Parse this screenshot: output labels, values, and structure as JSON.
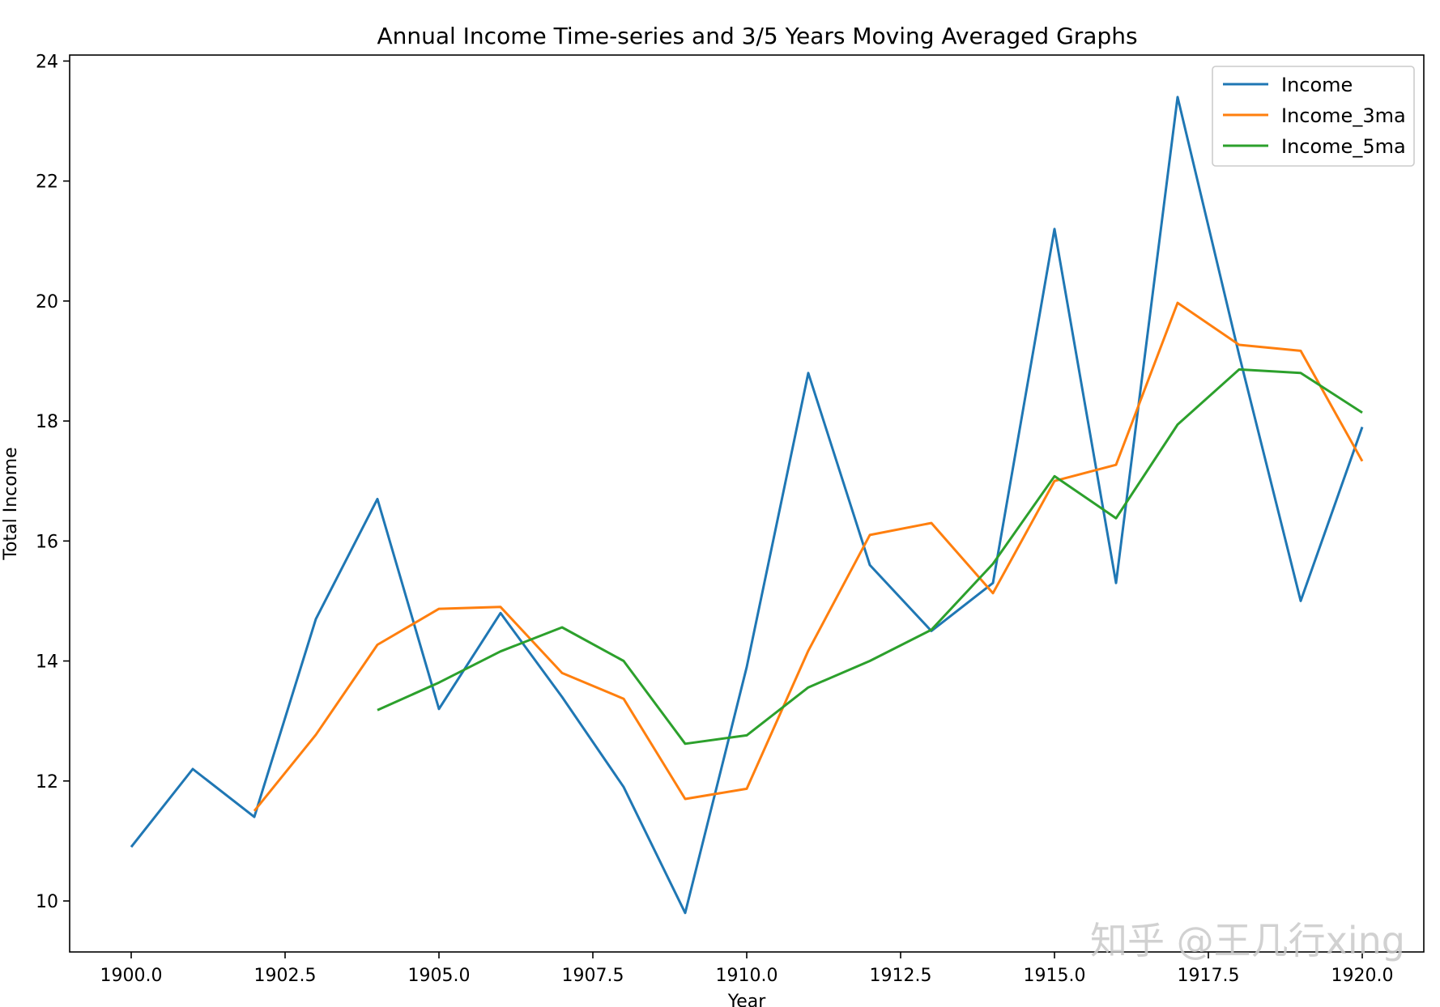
{
  "chart_data": {
    "type": "line",
    "title": "Annual Income Time-series and 3/5 Years Moving Averaged Graphs",
    "xlabel": "Year",
    "ylabel": "Total Income",
    "xlim": [
      1899.0,
      1921.0
    ],
    "ylim": [
      9.15,
      24.1
    ],
    "xticks": [
      "1900.0",
      "1902.5",
      "1905.0",
      "1907.5",
      "1910.0",
      "1912.5",
      "1915.0",
      "1917.5",
      "1920.0"
    ],
    "yticks": [
      "10",
      "12",
      "14",
      "16",
      "18",
      "20",
      "22",
      "24"
    ],
    "grid": false,
    "legend_position": "top-right",
    "x": [
      1900,
      1901,
      1902,
      1903,
      1904,
      1905,
      1906,
      1907,
      1908,
      1909,
      1910,
      1911,
      1912,
      1913,
      1914,
      1915,
      1916,
      1917,
      1918,
      1919,
      1920
    ],
    "series": [
      {
        "name": "Income",
        "color": "#1f77b4",
        "values": [
          10.9,
          12.2,
          11.4,
          14.7,
          16.7,
          13.2,
          14.8,
          13.4,
          11.9,
          9.8,
          13.9,
          18.8,
          15.6,
          14.5,
          15.3,
          21.2,
          15.3,
          23.4,
          19.1,
          15.0,
          17.9
        ]
      },
      {
        "name": "Income_3ma",
        "color": "#ff7f0e",
        "values": [
          null,
          null,
          11.5,
          12.77,
          14.27,
          14.87,
          14.9,
          13.8,
          13.37,
          11.7,
          11.87,
          14.17,
          16.1,
          16.3,
          15.13,
          17.0,
          17.27,
          19.97,
          19.27,
          19.17,
          17.33
        ]
      },
      {
        "name": "Income_5ma",
        "color": "#2ca02c",
        "values": [
          null,
          null,
          null,
          null,
          13.18,
          13.64,
          14.16,
          14.56,
          14.0,
          12.62,
          12.76,
          13.56,
          14.0,
          14.52,
          15.62,
          17.08,
          16.38,
          17.94,
          18.86,
          18.8,
          18.14
        ]
      }
    ]
  },
  "watermark": "知乎 @王几行xing"
}
